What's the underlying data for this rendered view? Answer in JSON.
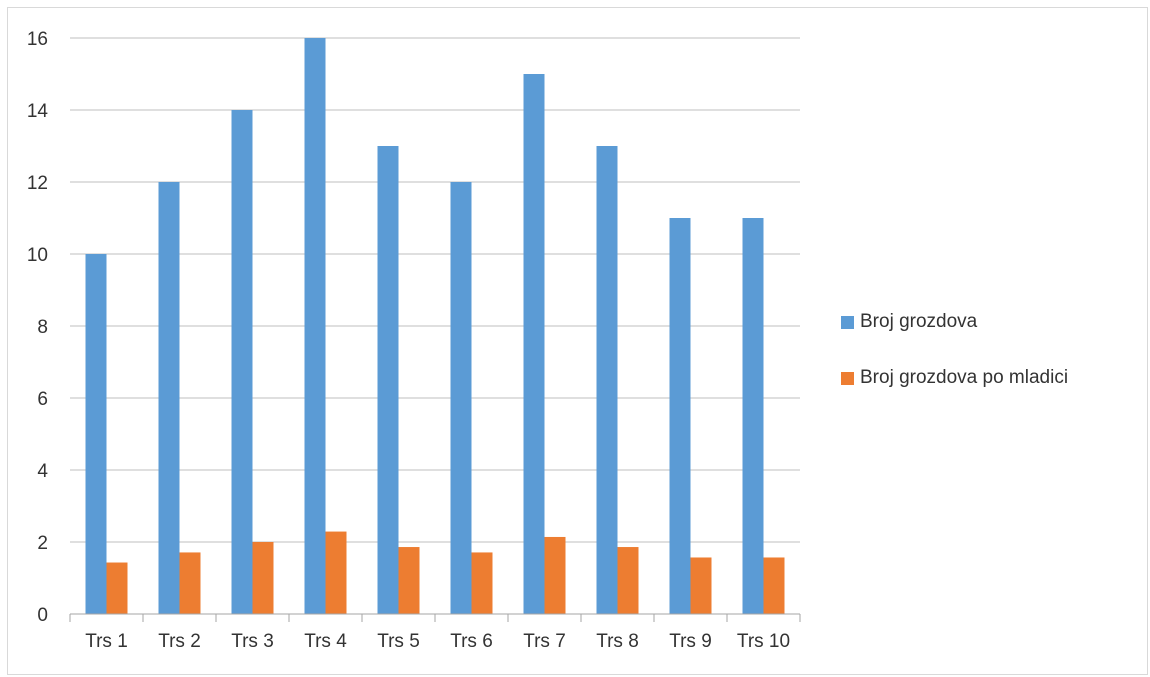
{
  "chart_data": {
    "type": "bar",
    "title": "",
    "xlabel": "",
    "ylabel": "",
    "categories": [
      "Trs 1",
      "Trs 2",
      "Trs 3",
      "Trs 4",
      "Trs 5",
      "Trs 6",
      "Trs 7",
      "Trs 8",
      "Trs 9",
      "Trs 10"
    ],
    "series": [
      {
        "name": "Broj grozdova",
        "color": "#5b9bd5",
        "values": [
          10,
          12,
          14,
          16,
          13,
          12,
          15,
          13,
          11,
          11
        ]
      },
      {
        "name": "Broj grozdova po mladici",
        "color": "#ed7d31",
        "values": [
          1.43,
          1.71,
          2.0,
          2.29,
          1.86,
          1.71,
          2.14,
          1.86,
          1.57,
          1.57
        ]
      }
    ],
    "ylim": [
      0,
      16
    ],
    "yticks": [
      "0",
      "2",
      "4",
      "6",
      "8",
      "10",
      "12",
      "14",
      "16"
    ],
    "grid": true,
    "legend_position": "right"
  }
}
